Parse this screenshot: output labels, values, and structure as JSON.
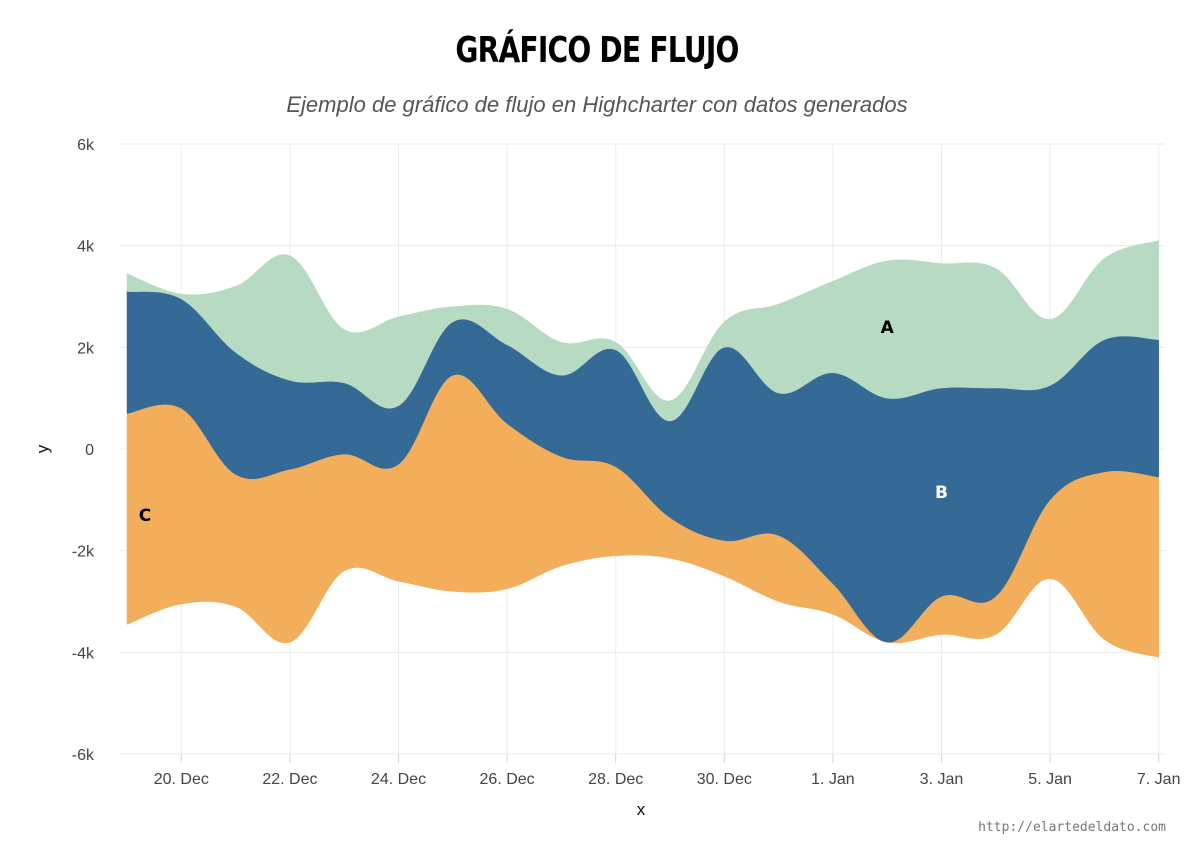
{
  "chart_data": {
    "type": "streamgraph",
    "title": "GRÁFICO DE FLUJO",
    "subtitle": "Ejemplo de gráfico de flujo en Highcharter con datos generados",
    "credit": "http://elartedeldato.com",
    "xlabel": "x",
    "ylabel": "y",
    "ylim": [
      -6000,
      6000
    ],
    "y_ticks": [
      6000,
      4000,
      2000,
      0,
      -2000,
      -4000,
      -6000
    ],
    "y_tick_labels": [
      "6k",
      "4k",
      "2k",
      "0",
      "-2k",
      "-4k",
      "-6k"
    ],
    "x_ticks": [
      "20. Dec",
      "22. Dec",
      "24. Dec",
      "26. Dec",
      "28. Dec",
      "30. Dec",
      "1. Jan",
      "3. Jan",
      "5. Jan",
      "7. Jan"
    ],
    "x": [
      "19. Dec",
      "20. Dec",
      "21. Dec",
      "22. Dec",
      "23. Dec",
      "24. Dec",
      "25. Dec",
      "26. Dec",
      "27. Dec",
      "28. Dec",
      "29. Dec",
      "30. Dec",
      "31. Dec",
      "1. Jan",
      "2. Jan",
      "3. Jan",
      "4. Jan",
      "5. Jan",
      "6. Jan",
      "7. Jan"
    ],
    "grid": true,
    "stack_order": [
      "C",
      "B",
      "A"
    ],
    "stream_bottom": [
      -3450,
      -3050,
      -3100,
      -3800,
      -2400,
      -2600,
      -2800,
      -2750,
      -2300,
      -2100,
      -2150,
      -2500,
      -3000,
      -3250,
      -3800,
      -3650,
      -3650,
      -2550,
      -3750,
      -4100
    ],
    "series": [
      {
        "name": "A",
        "color": "#b6dbc2",
        "label_color": "#000000",
        "label_at": "2. Jan",
        "label_y": 2400,
        "values": [
          350,
          100,
          1300,
          2450,
          1050,
          1750,
          300,
          700,
          650,
          150,
          400,
          500,
          1750,
          1800,
          2700,
          2450,
          2350,
          1300,
          1600,
          1950
        ]
      },
      {
        "name": "B",
        "color": "#356996",
        "label_color": "#ffffff",
        "label_at": "3. Jan",
        "label_y": -850,
        "values": [
          2400,
          2150,
          2400,
          1750,
          1400,
          1150,
          1050,
          1550,
          1600,
          2300,
          1900,
          3800,
          2800,
          4150,
          4800,
          4100,
          4100,
          2250,
          2600,
          2700
        ]
      },
      {
        "name": "C",
        "color": "#f3ae5b",
        "label_color": "#000000",
        "label_at": "19. Dec",
        "label_y": -1300,
        "values": [
          4150,
          3850,
          2600,
          3400,
          2300,
          2300,
          4250,
          3250,
          2150,
          1750,
          800,
          700,
          1300,
          600,
          0,
          750,
          750,
          1550,
          3300,
          3550
        ]
      }
    ]
  }
}
